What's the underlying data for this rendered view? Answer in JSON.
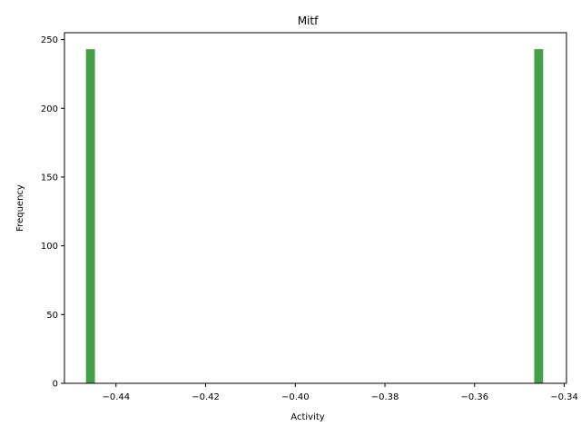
{
  "chart_data": {
    "type": "bar",
    "title": "Mitf",
    "xlabel": "Activity",
    "ylabel": "Frequency",
    "xlim": [
      -0.4515,
      -0.3395
    ],
    "ylim": [
      0,
      255
    ],
    "bar_color": "#43a047",
    "bins": [
      {
        "x_start": -0.4467,
        "x_end": -0.4447,
        "count": 243
      },
      {
        "x_start": -0.3467,
        "x_end": -0.3447,
        "count": 243
      }
    ],
    "x_ticks": [
      {
        "value": -0.44,
        "label": "−0.44"
      },
      {
        "value": -0.42,
        "label": "−0.42"
      },
      {
        "value": -0.4,
        "label": "−0.40"
      },
      {
        "value": -0.38,
        "label": "−0.38"
      },
      {
        "value": -0.36,
        "label": "−0.36"
      },
      {
        "value": -0.34,
        "label": "−0.34"
      }
    ],
    "y_ticks": [
      {
        "value": 0,
        "label": "0"
      },
      {
        "value": 50,
        "label": "50"
      },
      {
        "value": 100,
        "label": "100"
      },
      {
        "value": 150,
        "label": "150"
      },
      {
        "value": 200,
        "label": "200"
      },
      {
        "value": 250,
        "label": "250"
      }
    ],
    "grid": false,
    "legend": "none"
  }
}
